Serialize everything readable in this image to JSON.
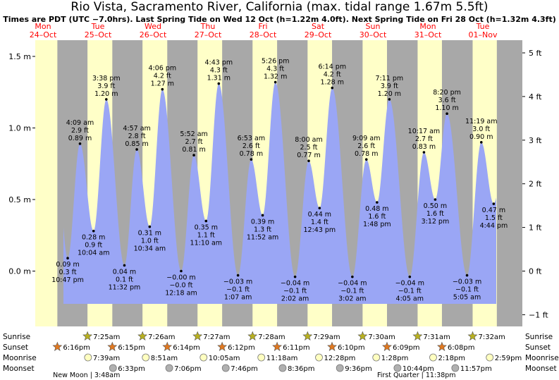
{
  "title": "Rio Vista, Sacramento River, California (max. tidal range 1.67m 5.5ft)",
  "subtitle": "Times are PDT (UTC −7.0hrs). Last Spring Tide on Wed 12 Oct (h=1.22m 4.0ft). Next Spring Tide on Fri 28 Oct (h=1.32m 4.3ft)",
  "colors": {
    "water": "#9aa6f5",
    "day": "#ffffc8",
    "night": "#a8a8a8",
    "day_label": "#ff0000",
    "sun": "#b8b020",
    "sunset": "#e07820",
    "moonrise": "#ffffc0",
    "moonset": "#b0b0b0"
  },
  "days": [
    {
      "dow": "Mon",
      "date": "24–Oct"
    },
    {
      "dow": "Tue",
      "date": "25–Oct"
    },
    {
      "dow": "Wed",
      "date": "26–Oct"
    },
    {
      "dow": "Thu",
      "date": "27–Oct"
    },
    {
      "dow": "Fri",
      "date": "28–Oct"
    },
    {
      "dow": "Sat",
      "date": "29–Oct"
    },
    {
      "dow": "Sun",
      "date": "30–Oct"
    },
    {
      "dow": "Mon",
      "date": "31–Oct"
    },
    {
      "dow": "Tue",
      "date": "01–Nov"
    }
  ],
  "chart_data": {
    "type": "area",
    "y_left_unit": "m",
    "y_right_unit": "ft",
    "ylim_m": [
      -0.35,
      1.67
    ],
    "left_ticks": [
      "1.5 m",
      "1.0 m",
      "0.5 m",
      "0.0 m"
    ],
    "left_tick_values": [
      1.5,
      1.0,
      0.5,
      0.0
    ],
    "right_ticks": [
      "5 ft",
      "4 ft",
      "3 ft",
      "2 ft",
      "1 ft",
      "0 ft",
      "−1 ft"
    ],
    "right_tick_values": [
      5,
      4,
      3,
      2,
      1,
      0,
      -1
    ],
    "tides": [
      {
        "time": "10:47 pm",
        "day": 0,
        "m": 0.09,
        "m_label": "0.09 m",
        "ft_label": "0.3 ft",
        "type": "low"
      },
      {
        "time": "4:09 am",
        "day": 1,
        "m": 0.89,
        "m_label": "0.89 m",
        "ft_label": "2.9 ft",
        "type": "high"
      },
      {
        "time": "10:04 am",
        "day": 1,
        "m": 0.28,
        "m_label": "0.28 m",
        "ft_label": "0.9 ft",
        "type": "low"
      },
      {
        "time": "3:38 pm",
        "day": 1,
        "m": 1.2,
        "m_label": "1.20 m",
        "ft_label": "3.9 ft",
        "type": "high"
      },
      {
        "time": "11:32 pm",
        "day": 1,
        "m": 0.04,
        "m_label": "0.04 m",
        "ft_label": "0.1 ft",
        "type": "low"
      },
      {
        "time": "4:57 am",
        "day": 2,
        "m": 0.85,
        "m_label": "0.85 m",
        "ft_label": "2.8 ft",
        "type": "high"
      },
      {
        "time": "10:34 am",
        "day": 2,
        "m": 0.31,
        "m_label": "0.31 m",
        "ft_label": "1.0 ft",
        "type": "low"
      },
      {
        "time": "4:06 pm",
        "day": 2,
        "m": 1.27,
        "m_label": "1.27 m",
        "ft_label": "4.2 ft",
        "type": "high"
      },
      {
        "time": "12:18 am",
        "day": 3,
        "m": -0.0,
        "m_label": "−0.00 m",
        "ft_label": "−0.0 ft",
        "type": "low"
      },
      {
        "time": "5:52 am",
        "day": 3,
        "m": 0.81,
        "m_label": "0.81 m",
        "ft_label": "2.7 ft",
        "type": "high"
      },
      {
        "time": "11:10 am",
        "day": 3,
        "m": 0.35,
        "m_label": "0.35 m",
        "ft_label": "1.1 ft",
        "type": "low"
      },
      {
        "time": "4:43 pm",
        "day": 3,
        "m": 1.31,
        "m_label": "1.31 m",
        "ft_label": "4.3 ft",
        "type": "high"
      },
      {
        "time": "1:07 am",
        "day": 4,
        "m": -0.03,
        "m_label": "−0.03 m",
        "ft_label": "−0.1 ft",
        "type": "low"
      },
      {
        "time": "6:53 am",
        "day": 4,
        "m": 0.78,
        "m_label": "0.78 m",
        "ft_label": "2.6 ft",
        "type": "high"
      },
      {
        "time": "11:52 am",
        "day": 4,
        "m": 0.39,
        "m_label": "0.39 m",
        "ft_label": "1.3 ft",
        "type": "low"
      },
      {
        "time": "5:26 pm",
        "day": 4,
        "m": 1.32,
        "m_label": "1.32 m",
        "ft_label": "4.3 ft",
        "type": "high"
      },
      {
        "time": "2:02 am",
        "day": 5,
        "m": -0.04,
        "m_label": "−0.04 m",
        "ft_label": "−0.1 ft",
        "type": "low"
      },
      {
        "time": "8:00 am",
        "day": 5,
        "m": 0.77,
        "m_label": "0.77 m",
        "ft_label": "2.5 ft",
        "type": "high"
      },
      {
        "time": "12:43 pm",
        "day": 5,
        "m": 0.44,
        "m_label": "0.44 m",
        "ft_label": "1.4 ft",
        "type": "low"
      },
      {
        "time": "6:14 pm",
        "day": 5,
        "m": 1.28,
        "m_label": "1.28 m",
        "ft_label": "4.2 ft",
        "type": "high"
      },
      {
        "time": "3:02 am",
        "day": 6,
        "m": -0.04,
        "m_label": "−0.04 m",
        "ft_label": "−0.1 ft",
        "type": "low"
      },
      {
        "time": "9:09 am",
        "day": 6,
        "m": 0.78,
        "m_label": "0.78 m",
        "ft_label": "2.6 ft",
        "type": "high"
      },
      {
        "time": "1:48 pm",
        "day": 6,
        "m": 0.48,
        "m_label": "0.48 m",
        "ft_label": "1.6 ft",
        "type": "low"
      },
      {
        "time": "7:11 pm",
        "day": 6,
        "m": 1.2,
        "m_label": "1.20 m",
        "ft_label": "3.9 ft",
        "type": "high"
      },
      {
        "time": "4:05 am",
        "day": 7,
        "m": -0.04,
        "m_label": "−0.04 m",
        "ft_label": "−0.1 ft",
        "type": "low"
      },
      {
        "time": "10:17 am",
        "day": 7,
        "m": 0.83,
        "m_label": "0.83 m",
        "ft_label": "2.7 ft",
        "type": "high"
      },
      {
        "time": "3:12 pm",
        "day": 7,
        "m": 0.5,
        "m_label": "0.50 m",
        "ft_label": "1.6 ft",
        "type": "low"
      },
      {
        "time": "8:20 pm",
        "day": 7,
        "m": 1.1,
        "m_label": "1.10 m",
        "ft_label": "3.6 ft",
        "type": "high"
      },
      {
        "time": "5:05 am",
        "day": 8,
        "m": -0.03,
        "m_label": "−0.03 m",
        "ft_label": "−0.1 ft",
        "type": "low"
      },
      {
        "time": "11:19 am",
        "day": 8,
        "m": 0.9,
        "m_label": "0.90 m",
        "ft_label": "3.0 ft",
        "type": "high"
      },
      {
        "time": "4:44 pm",
        "day": 8,
        "m": 0.47,
        "m_label": "0.47 m",
        "ft_label": "1.5 ft",
        "type": "low"
      }
    ]
  },
  "astro": {
    "row_labels": [
      "Sunrise",
      "Sunset",
      "Moonrise",
      "Moonset"
    ],
    "sunrise": [
      {
        "day": 1,
        "time": "7:25am"
      },
      {
        "day": 2,
        "time": "7:26am"
      },
      {
        "day": 3,
        "time": "7:27am"
      },
      {
        "day": 4,
        "time": "7:28am"
      },
      {
        "day": 5,
        "time": "7:29am"
      },
      {
        "day": 6,
        "time": "7:30am"
      },
      {
        "day": 7,
        "time": "7:31am"
      },
      {
        "day": 8,
        "time": "7:32am"
      }
    ],
    "sunset": [
      {
        "day": 0,
        "time": "6:16pm"
      },
      {
        "day": 1,
        "time": "6:15pm"
      },
      {
        "day": 2,
        "time": "6:14pm"
      },
      {
        "day": 3,
        "time": "6:12pm"
      },
      {
        "day": 4,
        "time": "6:11pm"
      },
      {
        "day": 5,
        "time": "6:10pm"
      },
      {
        "day": 6,
        "time": "6:09pm"
      },
      {
        "day": 7,
        "time": "6:08pm"
      }
    ],
    "moonrise": [
      {
        "day": 1,
        "time": "7:39am"
      },
      {
        "day": 2,
        "time": "8:51am"
      },
      {
        "day": 3,
        "time": "10:05am"
      },
      {
        "day": 4,
        "time": "11:18am"
      },
      {
        "day": 5,
        "time": "12:28pm"
      },
      {
        "day": 6,
        "time": "1:28pm"
      },
      {
        "day": 7,
        "time": "2:18pm"
      },
      {
        "day": 8,
        "time": "2:59pm"
      }
    ],
    "moonset": [
      {
        "day": 1,
        "time": "6:33pm"
      },
      {
        "day": 2,
        "time": "7:06pm"
      },
      {
        "day": 3,
        "time": "7:46pm"
      },
      {
        "day": 4,
        "time": "8:36pm"
      },
      {
        "day": 5,
        "time": "9:36pm"
      },
      {
        "day": 6,
        "time": "10:44pm"
      },
      {
        "day": 7,
        "time": "11:57pm"
      }
    ],
    "phases": [
      {
        "label": "New Moon | 3:48am",
        "day": 1
      },
      {
        "label": "First Quarter | 11:38pm",
        "day": 7
      }
    ]
  }
}
